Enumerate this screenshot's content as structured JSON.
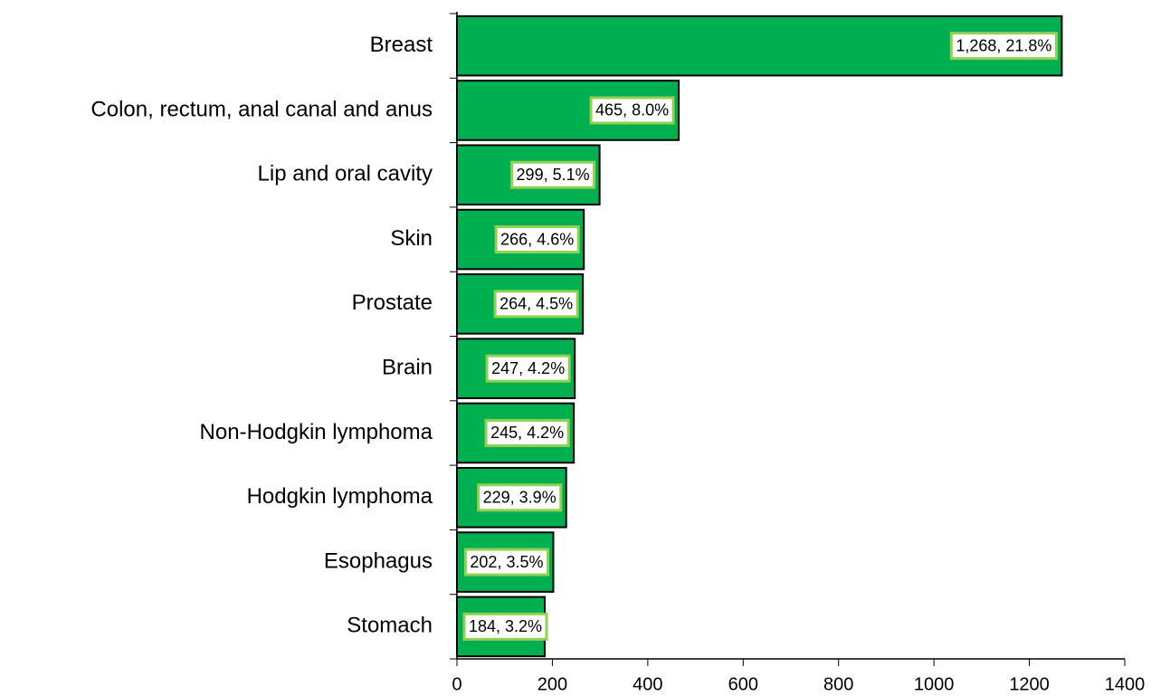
{
  "chart_data": {
    "type": "bar",
    "orientation": "horizontal",
    "categories": [
      "Breast",
      "Colon, rectum, anal canal and anus",
      "Lip and oral cavity",
      "Skin",
      "Prostate",
      "Brain",
      "Non-Hodgkin lymphoma",
      "Hodgkin lymphoma",
      "Esophagus",
      "Stomach"
    ],
    "values": [
      1268,
      465,
      299,
      266,
      264,
      247,
      245,
      229,
      202,
      184
    ],
    "value_labels": [
      "1,268, 21.8%",
      "465, 8.0%",
      "299, 5.1%",
      "266, 4.6%",
      "264, 4.5%",
      "247, 4.2%",
      "245, 4.2%",
      "229, 3.9%",
      "202, 3.5%",
      "184, 3.2%"
    ],
    "color": "#00b050",
    "xlim": [
      0,
      1400
    ],
    "xticks": [
      0,
      200,
      400,
      600,
      800,
      1000,
      1200,
      1400
    ],
    "grid": false
  }
}
